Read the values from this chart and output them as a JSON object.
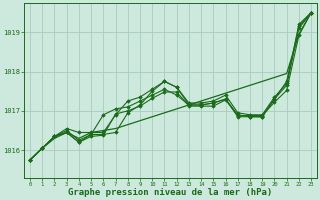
{
  "background_color": "#cde8dc",
  "grid_color": "#a8ccbe",
  "line_color": "#1a6b1a",
  "marker_color": "#1a6b1a",
  "xlabel": "Graphe pression niveau de la mer (hPa)",
  "xlabel_fontsize": 6.5,
  "xlim": [
    -0.5,
    23.5
  ],
  "ylim": [
    1015.3,
    1019.75
  ],
  "yticks": [
    1016,
    1017,
    1018,
    1019
  ],
  "xticks": [
    0,
    1,
    2,
    3,
    4,
    5,
    6,
    7,
    8,
    9,
    10,
    11,
    12,
    13,
    14,
    15,
    16,
    17,
    18,
    19,
    20,
    21,
    22,
    23
  ],
  "series_no_marker": [
    [
      1015.75,
      1016.05,
      1016.3,
      1016.45,
      1016.3,
      1016.45,
      1016.5,
      1016.55,
      1016.65,
      1016.75,
      1016.85,
      1016.95,
      1017.05,
      1017.15,
      1017.25,
      1017.35,
      1017.45,
      1017.55,
      1017.65,
      1017.75,
      1017.85,
      1017.95,
      1018.95,
      1019.5
    ]
  ],
  "series_with_marker": [
    [
      1015.75,
      1016.05,
      1016.35,
      1016.45,
      1016.2,
      1016.4,
      1016.4,
      1016.45,
      1016.95,
      1017.15,
      1017.5,
      1017.75,
      1017.6,
      1017.15,
      1017.15,
      1017.2,
      1017.3,
      1016.85,
      1016.85,
      1016.85,
      1017.3,
      1017.75,
      1019.15,
      1019.5
    ],
    [
      1015.75,
      1016.05,
      1016.35,
      1016.5,
      1016.25,
      1016.4,
      1016.9,
      1017.05,
      1017.1,
      1017.25,
      1017.4,
      1017.55,
      1017.4,
      1017.15,
      1017.15,
      1017.2,
      1017.3,
      1016.9,
      1016.85,
      1016.85,
      1017.3,
      1017.65,
      1019.1,
      1019.5
    ],
    [
      1015.75,
      1016.05,
      1016.35,
      1016.55,
      1016.45,
      1016.45,
      1016.45,
      1016.9,
      1017.25,
      1017.35,
      1017.55,
      1017.75,
      1017.6,
      1017.2,
      1017.2,
      1017.25,
      1017.4,
      1016.95,
      1016.9,
      1016.9,
      1017.35,
      1017.7,
      1019.2,
      1019.5
    ],
    [
      1015.75,
      1016.05,
      1016.35,
      1016.45,
      1016.2,
      1016.35,
      1016.38,
      1016.92,
      1017.0,
      1017.12,
      1017.32,
      1017.48,
      1017.48,
      1017.12,
      1017.12,
      1017.12,
      1017.28,
      1016.88,
      1016.88,
      1016.88,
      1017.22,
      1017.52,
      1018.92,
      1019.5
    ]
  ]
}
